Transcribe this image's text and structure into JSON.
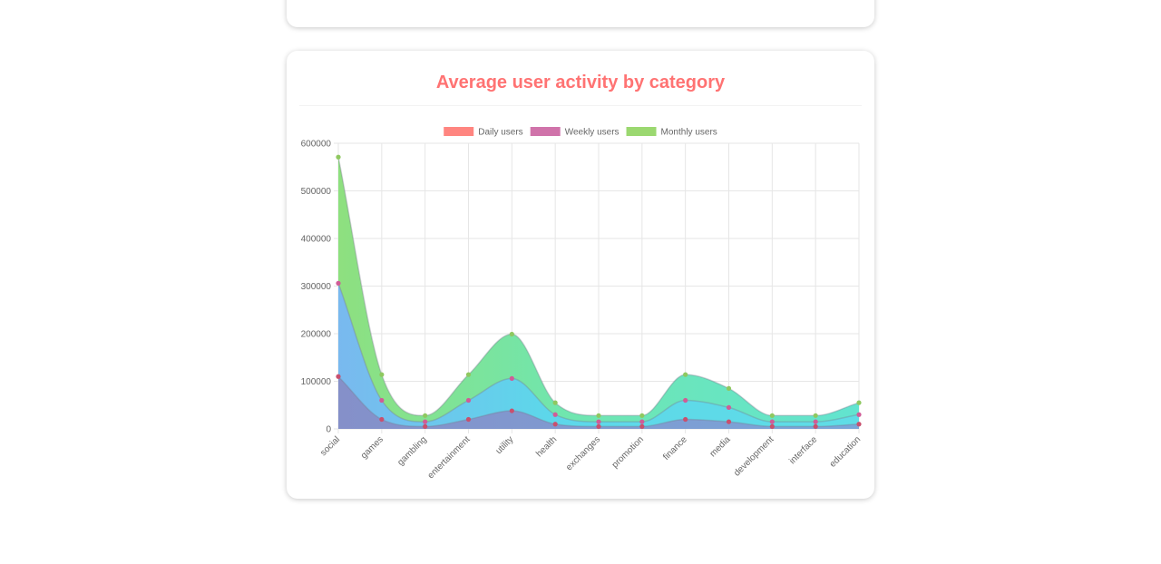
{
  "title": "Average user activity by category",
  "chart_data": {
    "type": "area",
    "title": "Average user activity by category",
    "xlabel": "",
    "ylabel": "",
    "categories": [
      "social",
      "games",
      "gambling",
      "entertainment",
      "utility",
      "health",
      "exchanges",
      "promotion",
      "finance",
      "media",
      "development",
      "interface",
      "education"
    ],
    "ylim": [
      0,
      600000
    ],
    "yticks": [
      0,
      100000,
      200000,
      300000,
      400000,
      500000,
      600000
    ],
    "grid": true,
    "legend": "top",
    "series": [
      {
        "name": "Daily users",
        "color": "#ff8580",
        "values": [
          110000,
          20000,
          5000,
          20000,
          38000,
          10000,
          5000,
          5000,
          20000,
          15000,
          5000,
          5000,
          10000
        ]
      },
      {
        "name": "Weekly users",
        "color": "#d073aa",
        "values": [
          306000,
          60000,
          15000,
          60000,
          106000,
          30000,
          15000,
          15000,
          60000,
          45000,
          15000,
          15000,
          30000
        ]
      },
      {
        "name": "Monthly users",
        "color": "#9bd870",
        "values": [
          571000,
          114000,
          28000,
          114000,
          199000,
          55000,
          28000,
          28000,
          114000,
          85000,
          28000,
          28000,
          55000
        ]
      }
    ]
  }
}
